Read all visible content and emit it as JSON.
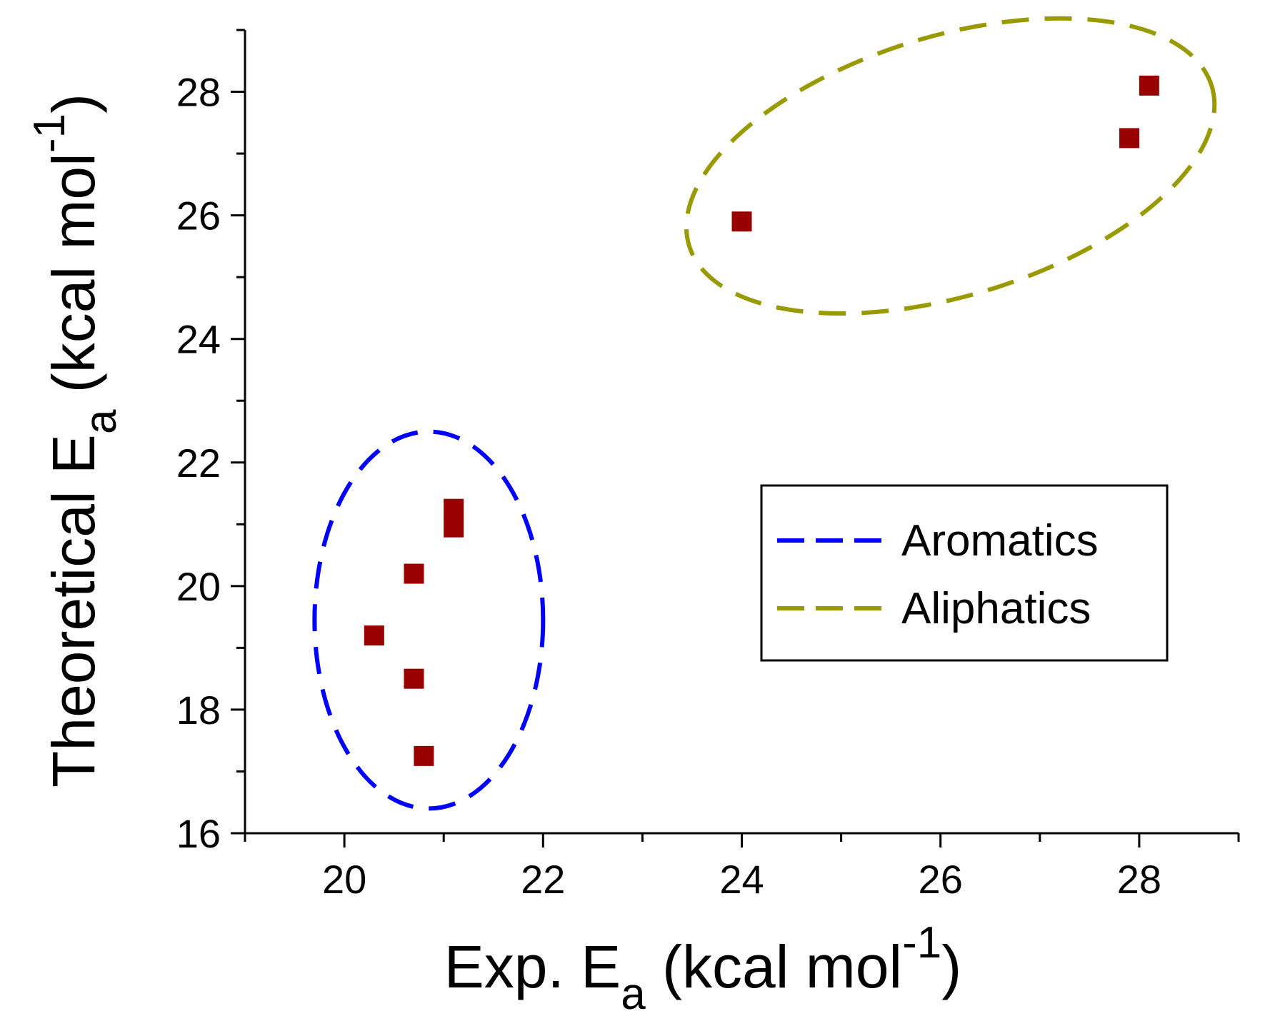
{
  "chart_data": {
    "type": "scatter",
    "title": "",
    "xlabel": {
      "main": "Exp. E",
      "sub": "a",
      "unit_open": " (kcal mol",
      "sup": "-1",
      "unit_close": ")"
    },
    "ylabel": {
      "main": "Theoretical E",
      "sub": "a",
      "unit_open": " (kcal mol",
      "sup": "-1",
      "unit_close": ")"
    },
    "xlim": [
      19,
      29
    ],
    "ylim": [
      16,
      29
    ],
    "x_ticks": [
      20,
      22,
      24,
      26,
      28
    ],
    "y_ticks": [
      16,
      18,
      20,
      22,
      24,
      26,
      28
    ],
    "x_tick_labels": [
      "20",
      "22",
      "24",
      "26",
      "28"
    ],
    "y_tick_labels": [
      "16",
      "18",
      "20",
      "22",
      "24",
      "26",
      "28"
    ],
    "grid": false,
    "point_color": "#990000",
    "series": [
      {
        "name": "Aromatics",
        "points": [
          {
            "x": 20.3,
            "y": 19.2
          },
          {
            "x": 20.7,
            "y": 20.2
          },
          {
            "x": 20.7,
            "y": 18.5
          },
          {
            "x": 20.8,
            "y": 17.25
          },
          {
            "x": 21.1,
            "y": 20.95
          },
          {
            "x": 21.1,
            "y": 21.25
          }
        ]
      },
      {
        "name": "Aliphatics",
        "points": [
          {
            "x": 24.0,
            "y": 25.9
          },
          {
            "x": 27.9,
            "y": 27.25
          },
          {
            "x": 28.1,
            "y": 28.1
          }
        ]
      }
    ],
    "groups": [
      {
        "name": "Aromatics",
        "color": "#0000ff",
        "center": [
          20.85,
          19.45
        ],
        "radius": [
          1.15,
          3.05
        ],
        "rotation_deg": 0
      },
      {
        "name": "Aliphatics",
        "color": "#999900",
        "center": [
          26.1,
          26.8
        ],
        "radius": [
          2.75,
          2.1
        ],
        "rotation_deg": -17
      }
    ],
    "legend": {
      "position": "right",
      "entries": [
        {
          "label": "Aromatics",
          "color": "#0000ff",
          "style": "dashed"
        },
        {
          "label": "Aliphatics",
          "color": "#999900",
          "style": "dashed"
        }
      ]
    }
  }
}
